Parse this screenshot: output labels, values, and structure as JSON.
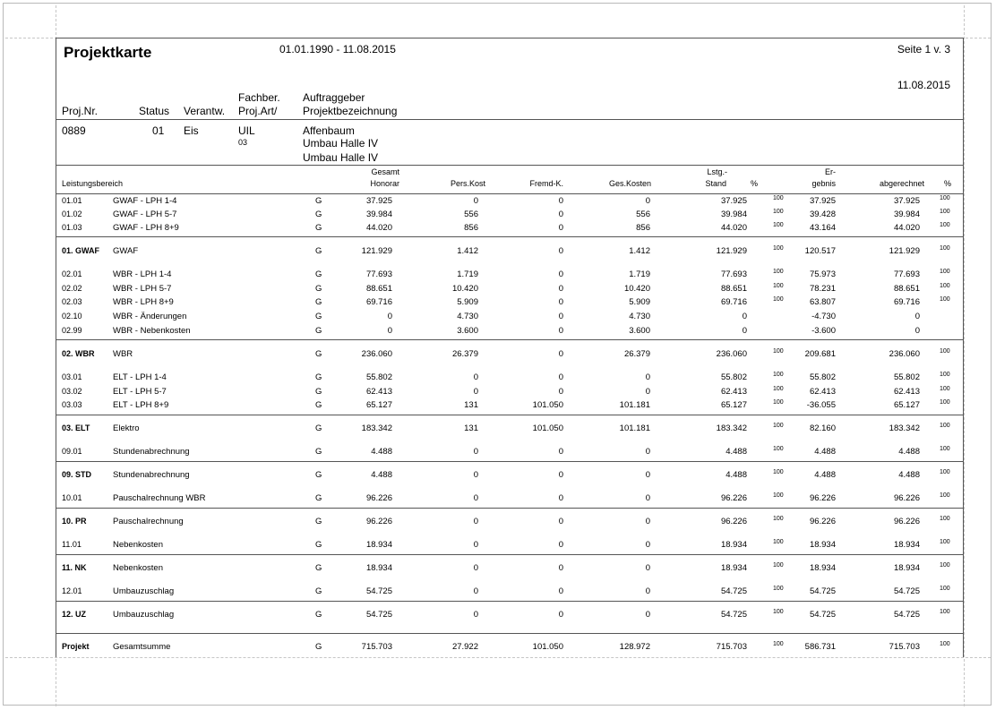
{
  "header": {
    "title": "Projektkarte",
    "date_range": "01.01.1990 - 11.08.2015",
    "page": "Seite  1 v. 3",
    "date": "11.08.2015"
  },
  "project_columns": {
    "proj_nr": "Proj.Nr.",
    "status": "Status",
    "verantw": "Verantw.",
    "fachber": "Fachber.",
    "proj_art": "Proj.Art/",
    "auftraggeber": "Auftraggeber",
    "projektbezeichnung": "Projektbezeichnung"
  },
  "project": {
    "nr": "0889",
    "status": "01",
    "verantw": "Eis",
    "fachber": "UIL",
    "art": "03",
    "client": "Affenbaum",
    "name1": "Umbau Halle IV",
    "name2": "Umbau Halle IV"
  },
  "table_headers": {
    "leistungsbereich": "Leistungsbereich",
    "gesamt": "Gesamt",
    "honorar": "Honorar",
    "pers_kost": "Pers.Kost",
    "fremd_k": "Fremd-K.",
    "ges_kosten": "Ges.Kosten",
    "lstg": "Lstg.-",
    "stand": "Stand",
    "pct1": "%",
    "er": "Er-",
    "gebnis": "gebnis",
    "abgerechnet": "abgerechnet",
    "pct2": "%"
  },
  "rows": [
    {
      "code": "01.01",
      "name": "GWAF - LPH 1-4",
      "g": "G",
      "honorar": "37.925",
      "pers": "0",
      "fremd": "0",
      "ges": "0",
      "stand": "37.925",
      "p1": "100",
      "ergebnis": "37.925",
      "abger": "37.925",
      "p2": "100",
      "bold": false
    },
    {
      "code": "01.02",
      "name": "GWAF - LPH 5-7",
      "g": "G",
      "honorar": "39.984",
      "pers": "556",
      "fremd": "0",
      "ges": "556",
      "stand": "39.984",
      "p1": "100",
      "ergebnis": "39.428",
      "abger": "39.984",
      "p2": "100",
      "bold": false
    },
    {
      "code": "01.03",
      "name": "GWAF - LPH 8+9",
      "g": "G",
      "honorar": "44.020",
      "pers": "856",
      "fremd": "0",
      "ges": "856",
      "stand": "44.020",
      "p1": "100",
      "ergebnis": "43.164",
      "abger": "44.020",
      "p2": "100",
      "bold": false
    },
    {
      "code": "01. GWAF",
      "name": "GWAF",
      "g": "G",
      "honorar": "121.929",
      "pers": "1.412",
      "fremd": "0",
      "ges": "1.412",
      "stand": "121.929",
      "p1": "100",
      "ergebnis": "120.517",
      "abger": "121.929",
      "p2": "100",
      "bold": true
    },
    {
      "code": "02.01",
      "name": "WBR - LPH 1-4",
      "g": "G",
      "honorar": "77.693",
      "pers": "1.719",
      "fremd": "0",
      "ges": "1.719",
      "stand": "77.693",
      "p1": "100",
      "ergebnis": "75.973",
      "abger": "77.693",
      "p2": "100",
      "bold": false
    },
    {
      "code": "02.02",
      "name": "WBR - LPH 5-7",
      "g": "G",
      "honorar": "88.651",
      "pers": "10.420",
      "fremd": "0",
      "ges": "10.420",
      "stand": "88.651",
      "p1": "100",
      "ergebnis": "78.231",
      "abger": "88.651",
      "p2": "100",
      "bold": false
    },
    {
      "code": "02.03",
      "name": "WBR - LPH 8+9",
      "g": "G",
      "honorar": "69.716",
      "pers": "5.909",
      "fremd": "0",
      "ges": "5.909",
      "stand": "69.716",
      "p1": "100",
      "ergebnis": "63.807",
      "abger": "69.716",
      "p2": "100",
      "bold": false
    },
    {
      "code": "02.10",
      "name": "WBR - Änderungen",
      "g": "G",
      "honorar": "0",
      "pers": "4.730",
      "fremd": "0",
      "ges": "4.730",
      "stand": "0",
      "p1": "",
      "ergebnis": "-4.730",
      "abger": "0",
      "p2": "",
      "bold": false
    },
    {
      "code": "02.99",
      "name": "WBR - Nebenkosten",
      "g": "G",
      "honorar": "0",
      "pers": "3.600",
      "fremd": "0",
      "ges": "3.600",
      "stand": "0",
      "p1": "",
      "ergebnis": "-3.600",
      "abger": "0",
      "p2": "",
      "bold": false
    },
    {
      "code": "02. WBR",
      "name": "WBR",
      "g": "G",
      "honorar": "236.060",
      "pers": "26.379",
      "fremd": "0",
      "ges": "26.379",
      "stand": "236.060",
      "p1": "100",
      "ergebnis": "209.681",
      "abger": "236.060",
      "p2": "100",
      "bold": true
    },
    {
      "code": "03.01",
      "name": "ELT - LPH 1-4",
      "g": "G",
      "honorar": "55.802",
      "pers": "0",
      "fremd": "0",
      "ges": "0",
      "stand": "55.802",
      "p1": "100",
      "ergebnis": "55.802",
      "abger": "55.802",
      "p2": "100",
      "bold": false
    },
    {
      "code": "03.02",
      "name": "ELT - LPH 5-7",
      "g": "G",
      "honorar": "62.413",
      "pers": "0",
      "fremd": "0",
      "ges": "0",
      "stand": "62.413",
      "p1": "100",
      "ergebnis": "62.413",
      "abger": "62.413",
      "p2": "100",
      "bold": false
    },
    {
      "code": "03.03",
      "name": "ELT - LPH 8+9",
      "g": "G",
      "honorar": "65.127",
      "pers": "131",
      "fremd": "101.050",
      "ges": "101.181",
      "stand": "65.127",
      "p1": "100",
      "ergebnis": "-36.055",
      "abger": "65.127",
      "p2": "100",
      "bold": false
    },
    {
      "code": "03. ELT",
      "name": "Elektro",
      "g": "G",
      "honorar": "183.342",
      "pers": "131",
      "fremd": "101.050",
      "ges": "101.181",
      "stand": "183.342",
      "p1": "100",
      "ergebnis": "82.160",
      "abger": "183.342",
      "p2": "100",
      "bold": true
    },
    {
      "code": "09.01",
      "name": "Stundenabrechnung",
      "g": "G",
      "honorar": "4.488",
      "pers": "0",
      "fremd": "0",
      "ges": "0",
      "stand": "4.488",
      "p1": "100",
      "ergebnis": "4.488",
      "abger": "4.488",
      "p2": "100",
      "bold": false
    },
    {
      "code": "09. STD",
      "name": "Stundenabrechnung",
      "g": "G",
      "honorar": "4.488",
      "pers": "0",
      "fremd": "0",
      "ges": "0",
      "stand": "4.488",
      "p1": "100",
      "ergebnis": "4.488",
      "abger": "4.488",
      "p2": "100",
      "bold": true
    },
    {
      "code": "10.01",
      "name": "Pauschalrechnung WBR",
      "g": "G",
      "honorar": "96.226",
      "pers": "0",
      "fremd": "0",
      "ges": "0",
      "stand": "96.226",
      "p1": "100",
      "ergebnis": "96.226",
      "abger": "96.226",
      "p2": "100",
      "bold": false
    },
    {
      "code": "10. PR",
      "name": "Pauschalrechnung",
      "g": "G",
      "honorar": "96.226",
      "pers": "0",
      "fremd": "0",
      "ges": "0",
      "stand": "96.226",
      "p1": "100",
      "ergebnis": "96.226",
      "abger": "96.226",
      "p2": "100",
      "bold": true
    },
    {
      "code": "11.01",
      "name": "Nebenkosten",
      "g": "G",
      "honorar": "18.934",
      "pers": "0",
      "fremd": "0",
      "ges": "0",
      "stand": "18.934",
      "p1": "100",
      "ergebnis": "18.934",
      "abger": "18.934",
      "p2": "100",
      "bold": false
    },
    {
      "code": "11. NK",
      "name": "Nebenkosten",
      "g": "G",
      "honorar": "18.934",
      "pers": "0",
      "fremd": "0",
      "ges": "0",
      "stand": "18.934",
      "p1": "100",
      "ergebnis": "18.934",
      "abger": "18.934",
      "p2": "100",
      "bold": true
    },
    {
      "code": "12.01",
      "name": "Umbauzuschlag",
      "g": "G",
      "honorar": "54.725",
      "pers": "0",
      "fremd": "0",
      "ges": "0",
      "stand": "54.725",
      "p1": "100",
      "ergebnis": "54.725",
      "abger": "54.725",
      "p2": "100",
      "bold": false
    },
    {
      "code": "12. UZ",
      "name": "Umbauzuschlag",
      "g": "G",
      "honorar": "54.725",
      "pers": "0",
      "fremd": "0",
      "ges": "0",
      "stand": "54.725",
      "p1": "100",
      "ergebnis": "54.725",
      "abger": "54.725",
      "p2": "100",
      "bold": true
    },
    {
      "code": "Projekt",
      "name": "Gesamtsumme",
      "g": "G",
      "honorar": "715.703",
      "pers": "27.922",
      "fremd": "101.050",
      "ges": "128.972",
      "stand": "715.703",
      "p1": "100",
      "ergebnis": "586.731",
      "abger": "715.703",
      "p2": "100",
      "bold": true
    }
  ]
}
